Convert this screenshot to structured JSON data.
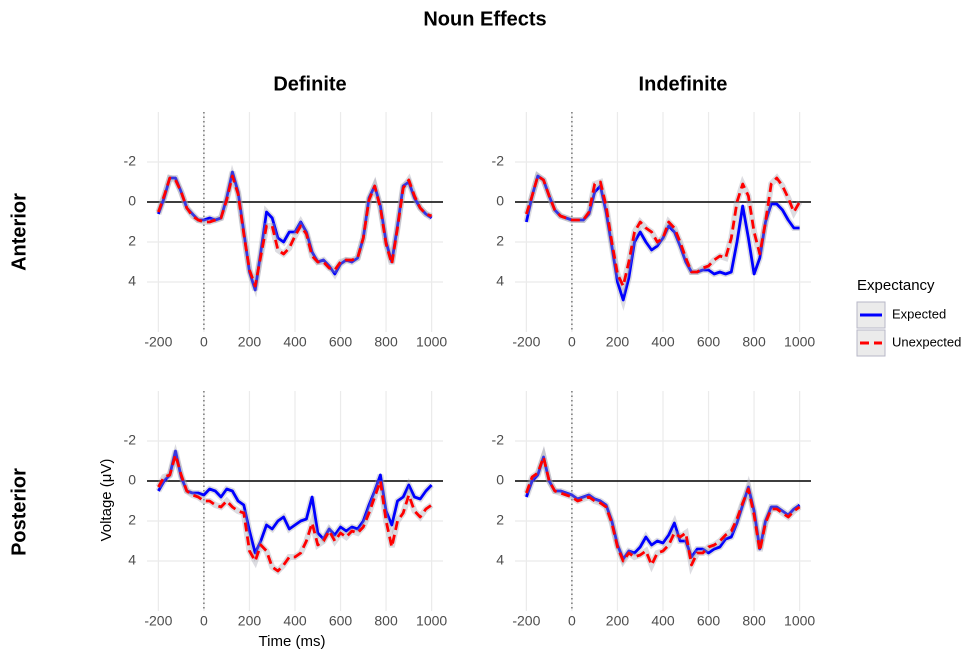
{
  "title": "Noun Effects",
  "col_labels": [
    "Definite",
    "Indefinite"
  ],
  "row_labels": [
    "Anterior",
    "Posterior"
  ],
  "xlabel": "Time (ms)",
  "ylabel": "Voltage (μV)",
  "legend": {
    "title": "Expectancy",
    "position": "right"
  },
  "chart_data": [
    {
      "type": "line",
      "xlim": [
        -250,
        1050
      ],
      "ylim": [
        -4.5,
        6.5
      ],
      "y_reversed": true,
      "grid": true,
      "hline": 0,
      "vline": 0,
      "xticks": [
        -200,
        0,
        200,
        400,
        600,
        800,
        1000
      ],
      "yticks": [
        -2,
        0,
        2,
        4
      ],
      "x": [
        -200,
        -175,
        -150,
        -125,
        -100,
        -75,
        -50,
        -25,
        0,
        25,
        50,
        75,
        100,
        125,
        150,
        175,
        200,
        225,
        250,
        275,
        300,
        325,
        350,
        375,
        400,
        425,
        450,
        475,
        500,
        525,
        550,
        575,
        600,
        625,
        650,
        675,
        700,
        725,
        750,
        775,
        800,
        825,
        850,
        875,
        900,
        925,
        950,
        975,
        1000
      ],
      "series": [
        {
          "name": "Expected",
          "color": "#0000ff",
          "dash": "solid",
          "values": [
            0.6,
            -0.2,
            -1.2,
            -1.2,
            -0.5,
            0.3,
            0.6,
            0.9,
            0.9,
            0.8,
            0.9,
            0.8,
            -0.2,
            -1.5,
            -0.5,
            1.5,
            3.5,
            4.4,
            2.5,
            0.5,
            0.8,
            1.8,
            2.0,
            1.5,
            1.5,
            1.0,
            1.5,
            2.5,
            3.0,
            2.9,
            3.2,
            3.6,
            3.1,
            2.9,
            3.0,
            2.8,
            1.8,
            -0.2,
            -0.8,
            0.2,
            2.0,
            3.0,
            1.2,
            -0.8,
            -1.0,
            -0.2,
            0.3,
            0.6,
            0.8
          ]
        },
        {
          "name": "Unexpected",
          "color": "#ff0000",
          "dash": "dashed",
          "values": [
            0.5,
            -0.3,
            -1.2,
            -1.1,
            -0.5,
            0.3,
            0.7,
            0.9,
            1.0,
            1.0,
            0.9,
            0.8,
            -0.1,
            -1.3,
            -0.4,
            1.6,
            3.4,
            4.2,
            2.7,
            1.2,
            1.2,
            2.4,
            2.6,
            2.3,
            1.7,
            1.2,
            1.6,
            2.7,
            3.0,
            3.0,
            3.3,
            3.4,
            3.0,
            2.9,
            2.9,
            2.8,
            1.8,
            -0.1,
            -0.8,
            0.3,
            2.1,
            3.1,
            1.3,
            -0.7,
            -1.1,
            -0.3,
            0.3,
            0.6,
            0.7
          ]
        }
      ]
    },
    {
      "type": "line",
      "xlim": [
        -250,
        1050
      ],
      "ylim": [
        -4.5,
        6.5
      ],
      "y_reversed": true,
      "grid": true,
      "hline": 0,
      "vline": 0,
      "xticks": [
        -200,
        0,
        200,
        400,
        600,
        800,
        1000
      ],
      "yticks": [
        -2,
        0,
        2,
        4
      ],
      "x": [
        -200,
        -175,
        -150,
        -125,
        -100,
        -75,
        -50,
        -25,
        0,
        25,
        50,
        75,
        100,
        125,
        150,
        175,
        200,
        225,
        250,
        275,
        300,
        325,
        350,
        375,
        400,
        425,
        450,
        475,
        500,
        525,
        550,
        575,
        600,
        625,
        650,
        675,
        700,
        725,
        750,
        775,
        800,
        825,
        850,
        875,
        900,
        925,
        950,
        975,
        1000
      ],
      "series": [
        {
          "name": "Expected",
          "color": "#0000ff",
          "dash": "solid",
          "values": [
            1.0,
            -0.3,
            -1.3,
            -1.1,
            -0.3,
            0.4,
            0.7,
            0.8,
            0.9,
            0.9,
            0.9,
            0.6,
            -0.5,
            -0.8,
            0.5,
            2.2,
            4.0,
            4.9,
            3.8,
            2.0,
            1.5,
            2.0,
            2.4,
            2.2,
            1.8,
            1.2,
            1.5,
            2.2,
            3.0,
            3.5,
            3.5,
            3.4,
            3.4,
            3.6,
            3.5,
            3.6,
            3.5,
            2.0,
            0.2,
            1.8,
            3.6,
            2.8,
            1.0,
            0.1,
            0.1,
            0.4,
            0.9,
            1.3,
            1.3
          ]
        },
        {
          "name": "Unexpected",
          "color": "#ff0000",
          "dash": "dashed",
          "values": [
            0.6,
            -0.3,
            -1.3,
            -1.1,
            -0.3,
            0.4,
            0.7,
            0.8,
            0.9,
            0.9,
            0.9,
            0.5,
            -0.9,
            -1.0,
            0.2,
            2.0,
            3.6,
            4.2,
            3.0,
            1.5,
            1.0,
            1.3,
            1.5,
            2.0,
            1.8,
            1.0,
            1.3,
            2.0,
            2.8,
            3.5,
            3.5,
            3.3,
            3.2,
            2.9,
            2.7,
            2.8,
            1.8,
            0.0,
            -0.9,
            -0.3,
            1.5,
            2.6,
            1.0,
            -0.9,
            -1.2,
            -0.8,
            -0.2,
            0.5,
            0.0
          ]
        }
      ]
    },
    {
      "type": "line",
      "xlim": [
        -250,
        1050
      ],
      "ylim": [
        -4.5,
        6.5
      ],
      "y_reversed": true,
      "grid": true,
      "hline": 0,
      "vline": 0,
      "xticks": [
        -200,
        0,
        200,
        400,
        600,
        800,
        1000
      ],
      "yticks": [
        -2,
        0,
        2,
        4
      ],
      "x": [
        -200,
        -175,
        -150,
        -125,
        -100,
        -75,
        -50,
        -25,
        0,
        25,
        50,
        75,
        100,
        125,
        150,
        175,
        200,
        225,
        250,
        275,
        300,
        325,
        350,
        375,
        400,
        425,
        450,
        475,
        500,
        525,
        550,
        575,
        600,
        625,
        650,
        675,
        700,
        725,
        750,
        775,
        800,
        825,
        850,
        875,
        900,
        925,
        950,
        975,
        1000
      ],
      "series": [
        {
          "name": "Expected",
          "color": "#0000ff",
          "dash": "solid",
          "values": [
            0.5,
            0.0,
            -0.3,
            -1.5,
            -0.2,
            0.5,
            0.6,
            0.6,
            0.7,
            0.4,
            0.5,
            0.8,
            0.4,
            0.5,
            1.0,
            1.2,
            2.5,
            3.6,
            3.0,
            2.2,
            2.4,
            2.0,
            1.8,
            2.4,
            2.2,
            2.0,
            1.9,
            0.8,
            2.6,
            2.9,
            2.4,
            2.7,
            2.3,
            2.5,
            2.3,
            2.4,
            2.0,
            1.2,
            0.5,
            -0.3,
            1.5,
            2.2,
            1.0,
            0.8,
            0.2,
            0.8,
            0.9,
            0.5,
            0.2
          ]
        },
        {
          "name": "Unexpected",
          "color": "#ff0000",
          "dash": "dashed",
          "values": [
            0.3,
            -0.2,
            -0.3,
            -1.3,
            -0.3,
            0.5,
            0.7,
            0.8,
            1.0,
            1.0,
            1.2,
            1.3,
            1.0,
            1.3,
            1.5,
            1.6,
            3.5,
            4.0,
            3.2,
            3.5,
            4.3,
            4.5,
            4.2,
            3.8,
            3.8,
            3.6,
            3.0,
            2.1,
            3.2,
            3.0,
            2.5,
            3.0,
            2.6,
            2.8,
            2.5,
            2.6,
            2.3,
            1.6,
            0.8,
            0.0,
            2.0,
            3.3,
            2.0,
            1.6,
            0.7,
            1.5,
            1.8,
            1.4,
            1.2
          ]
        }
      ]
    },
    {
      "type": "line",
      "xlim": [
        -250,
        1050
      ],
      "ylim": [
        -4.5,
        6.5
      ],
      "y_reversed": true,
      "grid": true,
      "hline": 0,
      "vline": 0,
      "xticks": [
        -200,
        0,
        200,
        400,
        600,
        800,
        1000
      ],
      "yticks": [
        -2,
        0,
        2,
        4
      ],
      "x": [
        -200,
        -175,
        -150,
        -125,
        -100,
        -75,
        -50,
        -25,
        0,
        25,
        50,
        75,
        100,
        125,
        150,
        175,
        200,
        225,
        250,
        275,
        300,
        325,
        350,
        375,
        400,
        425,
        450,
        475,
        500,
        525,
        550,
        575,
        600,
        625,
        650,
        675,
        700,
        725,
        750,
        775,
        800,
        825,
        850,
        875,
        900,
        925,
        950,
        975,
        1000
      ],
      "series": [
        {
          "name": "Expected",
          "color": "#0000ff",
          "dash": "solid",
          "values": [
            0.8,
            0.0,
            -0.3,
            -1.2,
            0.0,
            0.5,
            0.5,
            0.6,
            0.7,
            0.9,
            0.8,
            0.7,
            0.9,
            1.0,
            1.2,
            2.0,
            3.2,
            3.9,
            3.5,
            3.6,
            3.3,
            2.8,
            3.2,
            3.0,
            3.1,
            2.7,
            2.1,
            3.0,
            3.0,
            3.8,
            3.4,
            3.4,
            3.6,
            3.4,
            3.3,
            2.9,
            2.8,
            2.1,
            1.2,
            0.3,
            1.5,
            3.4,
            2.0,
            1.3,
            1.3,
            1.5,
            1.7,
            1.4,
            1.2
          ]
        },
        {
          "name": "Unexpected",
          "color": "#ff0000",
          "dash": "dashed",
          "values": [
            0.6,
            -0.2,
            -0.4,
            -1.2,
            0.0,
            0.5,
            0.6,
            0.7,
            0.8,
            1.0,
            0.9,
            0.8,
            1.0,
            1.1,
            1.3,
            2.1,
            3.3,
            4.0,
            3.6,
            3.8,
            3.7,
            3.5,
            4.2,
            3.6,
            3.5,
            3.2,
            2.6,
            2.8,
            2.6,
            4.2,
            3.6,
            3.6,
            3.3,
            3.2,
            3.0,
            2.7,
            2.5,
            1.9,
            1.1,
            0.4,
            1.7,
            3.5,
            2.1,
            1.4,
            1.4,
            1.6,
            1.8,
            1.5,
            1.3
          ]
        }
      ]
    }
  ]
}
